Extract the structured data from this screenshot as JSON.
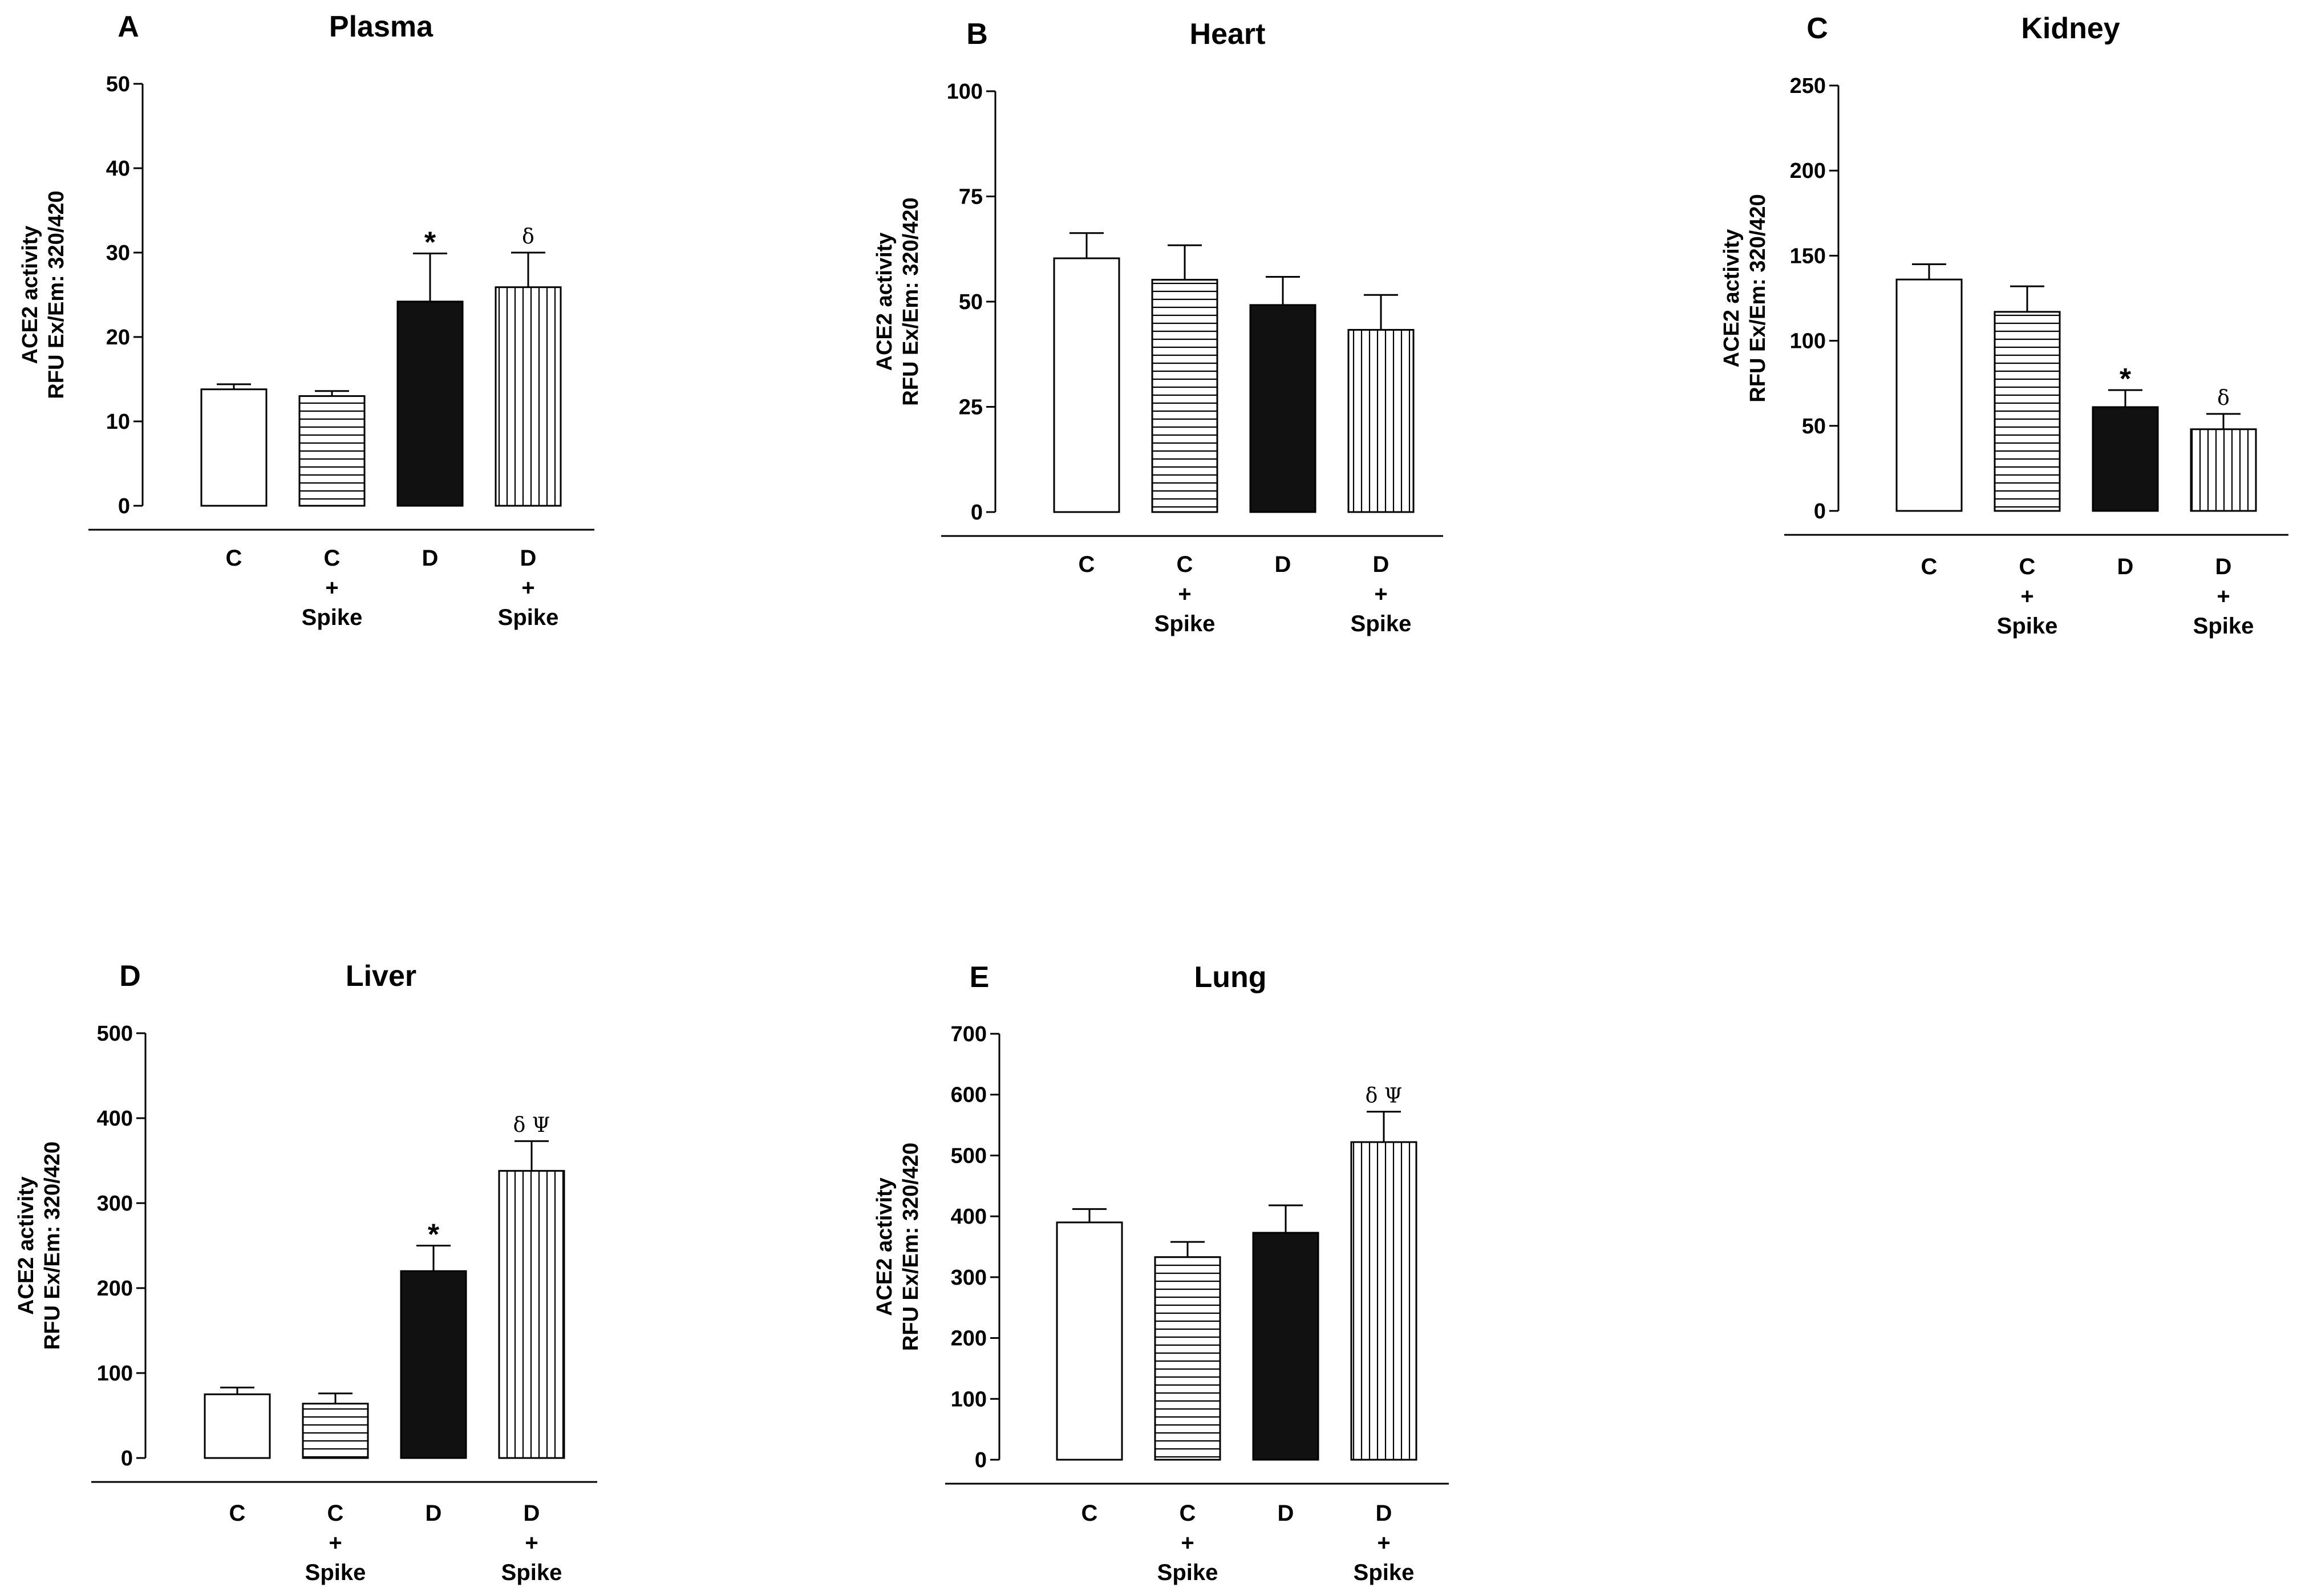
{
  "chart_data": [
    {
      "type": "bar",
      "panel": "A",
      "title": "Plasma",
      "ylabel": [
        "ACE2 activity",
        "RFU Ex/Em: 320/420"
      ],
      "ylim": [
        0,
        50
      ],
      "yticks": [
        0,
        10,
        20,
        30,
        40,
        50
      ],
      "categories": [
        [
          "C"
        ],
        [
          "C",
          "+",
          "Spike"
        ],
        [
          "D"
        ],
        [
          "D",
          "+",
          "Spike"
        ]
      ],
      "values": [
        13.8,
        13.0,
        24.2,
        25.9
      ],
      "errors": [
        0.6,
        0.6,
        5.7,
        4.1
      ],
      "annotations": [
        "",
        "",
        "*",
        "δ"
      ]
    },
    {
      "type": "bar",
      "panel": "B",
      "title": "Heart",
      "ylabel": [
        "ACE2 activity",
        "RFU Ex/Em: 320/420"
      ],
      "ylim": [
        0,
        100
      ],
      "yticks": [
        0,
        25,
        50,
        75,
        100
      ],
      "categories": [
        [
          "C"
        ],
        [
          "C",
          "+",
          "Spike"
        ],
        [
          "D"
        ],
        [
          "D",
          "+",
          "Spike"
        ]
      ],
      "values": [
        60.3,
        55.2,
        49.2,
        43.3
      ],
      "errors": [
        6.0,
        8.2,
        6.7,
        8.3
      ],
      "annotations": [
        "",
        "",
        "",
        ""
      ]
    },
    {
      "type": "bar",
      "panel": "C",
      "title": "Kidney",
      "ylabel": [
        "ACE2 activity",
        "RFU Ex/Em: 320/420"
      ],
      "ylim": [
        0,
        250
      ],
      "yticks": [
        0,
        50,
        100,
        150,
        200,
        250
      ],
      "categories": [
        [
          "C"
        ],
        [
          "C",
          "+",
          "Spike"
        ],
        [
          "D"
        ],
        [
          "D",
          "+",
          "Spike"
        ]
      ],
      "values": [
        136,
        117,
        61,
        48
      ],
      "errors": [
        9,
        15,
        10,
        9
      ],
      "annotations": [
        "",
        "",
        "*",
        "δ"
      ]
    },
    {
      "type": "bar",
      "panel": "D",
      "title": "Liver",
      "ylabel": [
        "ACE2 activity",
        "RFU Ex/Em: 320/420"
      ],
      "ylim": [
        0,
        500
      ],
      "yticks": [
        0,
        100,
        200,
        300,
        400,
        500
      ],
      "categories": [
        [
          "C"
        ],
        [
          "C",
          "+",
          "Spike"
        ],
        [
          "D"
        ],
        [
          "D",
          "+",
          "Spike"
        ]
      ],
      "values": [
        75,
        64,
        220,
        338
      ],
      "errors": [
        8,
        12,
        30,
        35
      ],
      "annotations": [
        "",
        "",
        "*",
        "δ Ψ"
      ]
    },
    {
      "type": "bar",
      "panel": "E",
      "title": "Lung",
      "ylabel": [
        "ACE2 activity",
        "RFU Ex/Em: 320/420"
      ],
      "ylim": [
        0,
        700
      ],
      "yticks": [
        0,
        100,
        200,
        300,
        400,
        500,
        600,
        700
      ],
      "categories": [
        [
          "C"
        ],
        [
          "C",
          "+",
          "Spike"
        ],
        [
          "D"
        ],
        [
          "D",
          "+",
          "Spike"
        ]
      ],
      "values": [
        390,
        333,
        373,
        522
      ],
      "errors": [
        22,
        25,
        45,
        50
      ],
      "annotations": [
        "",
        "",
        "",
        "δ  Ψ"
      ]
    }
  ],
  "fill_styles": [
    "open",
    "horizontal-stripes",
    "solid",
    "vertical-stripes"
  ],
  "colors": {
    "ink": "#000000",
    "bar_solid": "#111111",
    "background": "#ffffff"
  }
}
